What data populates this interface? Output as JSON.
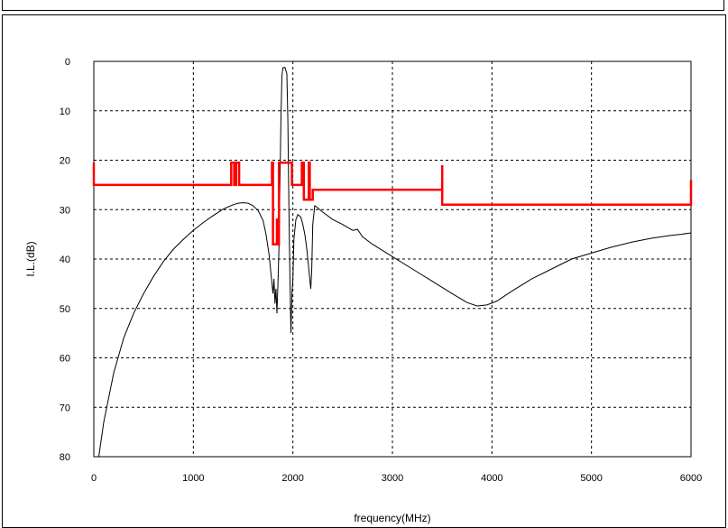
{
  "chart_data": {
    "type": "line",
    "title": "",
    "xlabel": "frequency(MHz)",
    "ylabel": "I.L.(dB)",
    "xlim": [
      0,
      6000
    ],
    "ylim": [
      0,
      80
    ],
    "y_inverted": true,
    "grid": "dashed",
    "xticks": [
      "0",
      "1000",
      "2000",
      "3000",
      "4000",
      "5000",
      "6000"
    ],
    "yticks": [
      "0",
      "10",
      "20",
      "30",
      "40",
      "50",
      "60",
      "70",
      "80"
    ],
    "colors": {
      "response": "#000000",
      "mask": "#ff0000",
      "grid": "#000000"
    },
    "series": [
      {
        "color": "#000000",
        "points": [
          [
            50,
            80
          ],
          [
            100,
            73
          ],
          [
            200,
            63
          ],
          [
            300,
            56
          ],
          [
            400,
            51
          ],
          [
            500,
            47
          ],
          [
            600,
            43.5
          ],
          [
            700,
            40.5
          ],
          [
            800,
            38
          ],
          [
            900,
            36
          ],
          [
            1000,
            34.2
          ],
          [
            1100,
            32.6
          ],
          [
            1200,
            31.2
          ],
          [
            1300,
            29.9
          ],
          [
            1400,
            29
          ],
          [
            1450,
            28.7
          ],
          [
            1500,
            28.6
          ],
          [
            1550,
            28.7
          ],
          [
            1600,
            29.2
          ],
          [
            1650,
            30.2
          ],
          [
            1700,
            32.2
          ],
          [
            1730,
            35
          ],
          [
            1760,
            39
          ],
          [
            1780,
            43
          ],
          [
            1800,
            47
          ],
          [
            1810,
            44
          ],
          [
            1820,
            49
          ],
          [
            1830,
            46
          ],
          [
            1840,
            51
          ],
          [
            1850,
            45
          ],
          [
            1860,
            38
          ],
          [
            1870,
            25
          ],
          [
            1880,
            12
          ],
          [
            1890,
            3
          ],
          [
            1900,
            1.3
          ],
          [
            1920,
            1.2
          ],
          [
            1940,
            2.5
          ],
          [
            1950,
            12
          ],
          [
            1960,
            30
          ],
          [
            1970,
            44
          ],
          [
            1980,
            55
          ],
          [
            1990,
            47
          ],
          [
            2000,
            44
          ],
          [
            2010,
            36
          ],
          [
            2030,
            32
          ],
          [
            2050,
            31
          ],
          [
            2080,
            31.5
          ],
          [
            2100,
            33
          ],
          [
            2120,
            35
          ],
          [
            2140,
            38
          ],
          [
            2160,
            42
          ],
          [
            2180,
            46
          ],
          [
            2190,
            42
          ],
          [
            2200,
            33
          ],
          [
            2220,
            29.2
          ],
          [
            2240,
            29.5
          ],
          [
            2300,
            30.5
          ],
          [
            2400,
            32
          ],
          [
            2500,
            33
          ],
          [
            2600,
            34.2
          ],
          [
            2650,
            34
          ],
          [
            2700,
            35.5
          ],
          [
            2800,
            37
          ],
          [
            3000,
            39.5
          ],
          [
            3200,
            42
          ],
          [
            3400,
            44.5
          ],
          [
            3600,
            47
          ],
          [
            3750,
            48.8
          ],
          [
            3850,
            49.5
          ],
          [
            3950,
            49.3
          ],
          [
            4050,
            48.5
          ],
          [
            4200,
            46.5
          ],
          [
            4400,
            44
          ],
          [
            4600,
            42
          ],
          [
            4800,
            40
          ],
          [
            5000,
            38.8
          ],
          [
            5200,
            37.6
          ],
          [
            5400,
            36.6
          ],
          [
            5600,
            35.8
          ],
          [
            5800,
            35.2
          ],
          [
            5900,
            35
          ],
          [
            6000,
            34.7
          ]
        ]
      },
      {
        "color": "#ff0000",
        "points": [
          [
            0,
            20.5
          ],
          [
            0,
            25
          ],
          [
            1380,
            25
          ],
          [
            1380,
            20.5
          ],
          [
            1410,
            20.5
          ],
          [
            1410,
            25
          ],
          [
            1430,
            25
          ],
          [
            1430,
            20.5
          ],
          [
            1460,
            20.5
          ],
          [
            1460,
            25
          ],
          [
            1790,
            25
          ],
          [
            1790,
            20.5
          ],
          [
            1800,
            20.5
          ],
          [
            1800,
            37
          ],
          [
            1840,
            37
          ],
          [
            1840,
            32
          ],
          [
            1850,
            32
          ],
          [
            1850,
            37
          ],
          [
            1860,
            37
          ],
          [
            1860,
            20.5
          ],
          [
            1990,
            20.5
          ],
          [
            1990,
            25
          ],
          [
            2090,
            25
          ],
          [
            2090,
            20.5
          ],
          [
            2110,
            20.5
          ],
          [
            2110,
            28
          ],
          [
            2160,
            28
          ],
          [
            2160,
            20.5
          ],
          [
            2170,
            20.5
          ],
          [
            2170,
            28
          ],
          [
            2200,
            28
          ],
          [
            2200,
            26
          ],
          [
            3500,
            26
          ],
          [
            3500,
            21
          ],
          [
            3500,
            29
          ],
          [
            6000,
            29
          ],
          [
            6000,
            24
          ]
        ]
      }
    ]
  }
}
